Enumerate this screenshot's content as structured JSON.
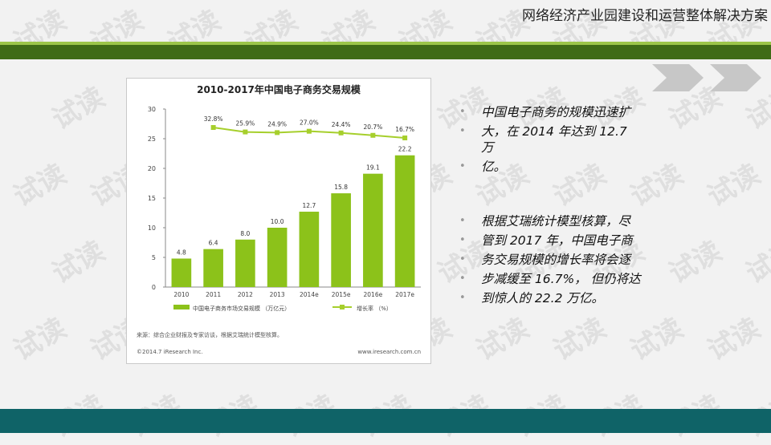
{
  "watermark": {
    "text": "试读"
  },
  "header": {
    "title": "网络经济产业园建设和运营整体解决方案"
  },
  "colors": {
    "accent_light": "#9cc54a",
    "accent_dark": "#3f6b17",
    "bar": "#8cc21a",
    "line": "#a6cf2c",
    "footer": "#0f6367"
  },
  "figure": {
    "source_note": "来源：综合企业财报及专家访谈，根据艾瑞统计模型核算。",
    "copyright": "©2014.7 iResearch Inc.",
    "website": "www.iresearch.com.cn"
  },
  "chart_data": {
    "type": "bar",
    "title": "2010-2017年中国电子商务交易规模",
    "categories": [
      "2010",
      "2011",
      "2012",
      "2013",
      "2014e",
      "2015e",
      "2016e",
      "2017e"
    ],
    "series": [
      {
        "name": "中国电子商务市场交易规模 （万亿元）",
        "type": "bar",
        "values": [
          4.8,
          6.4,
          8.0,
          10.0,
          12.7,
          15.8,
          19.1,
          22.2
        ],
        "labels": [
          "4.8",
          "6.4",
          "8.0",
          "10.0",
          "12.7",
          "15.8",
          "19.1",
          "22.2"
        ]
      },
      {
        "name": "增长率 （%）",
        "type": "line",
        "values": [
          null,
          32.8,
          25.9,
          24.9,
          27.0,
          24.4,
          20.7,
          16.7
        ],
        "labels": [
          "",
          "32.8%",
          "25.9%",
          "24.9%",
          "27.0%",
          "24.4%",
          "20.7%",
          "16.7%"
        ]
      }
    ],
    "y_ticks": [
      "0",
      "5",
      "10",
      "15",
      "20",
      "25",
      "30"
    ],
    "ylim": [
      0,
      30
    ],
    "grid": false,
    "legend": "bottom"
  },
  "notes": [
    "中国电子商务的规模迅速扩",
    "大，在 2014 年达到 12.7 万",
    "亿。",
    "根据艾瑞统计模型核算，尽",
    "管到 2017 年，中国电子商",
    "务交易规模的增长率将会逐",
    "步减缓至 16.7%， 但仍将达",
    "到惊人的 22.2 万亿。"
  ]
}
